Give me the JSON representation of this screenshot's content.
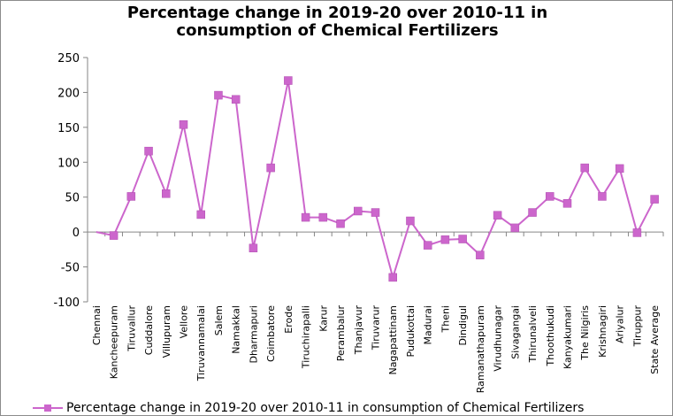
{
  "chart_data": {
    "type": "line",
    "title": "Percentage change in 2019-20 over 2010-11 in consumption of Chemical Fertilizers",
    "title_lines": [
      "Percentage change in 2019-20 over 2010-11 in",
      "consumption of Chemical Fertilizers"
    ],
    "xlabel": "",
    "ylabel": "",
    "ylim": [
      -100,
      250
    ],
    "yticks": [
      -100,
      -50,
      0,
      50,
      100,
      150,
      200,
      250
    ],
    "grid": false,
    "legend_position": "bottom",
    "color": "#cc66cc",
    "categories": [
      "Chennai",
      "Kancheepuram",
      "Tiruvallur",
      "Cuddalore",
      "Villupuram",
      "Vellore",
      "Tiruvannamalai",
      "Salem",
      "Namakkal",
      "Dharmapuri",
      "Coimbatore",
      "Erode",
      "Tiruchirapalli",
      "Karur",
      "Perambalur",
      "Thanjavur",
      "Tiruvarur",
      "Nagapattinam",
      "Pudukottai",
      "Madurai",
      "Theni",
      "Dindigul",
      "Ramanathapuram",
      "Virudhunagar",
      "Sivagangai",
      "Thirunalveli",
      "Thoothukudi",
      "Kanyakumari",
      "The Nilgiris",
      "Krishnagiri",
      "Ariyalur",
      "Tiruppur",
      "State Average"
    ],
    "series": [
      {
        "name": "Percentage change in 2019-20 over 2010-11 in consumption of  Chemical Fertilizers",
        "values": [
          0,
          -5,
          51,
          116,
          55,
          154,
          25,
          196,
          190,
          -23,
          92,
          217,
          21,
          21,
          12,
          30,
          28,
          -65,
          16,
          -19,
          -11,
          -10,
          -33,
          24,
          6,
          28,
          51,
          41,
          92,
          51,
          91,
          -1,
          47
        ],
        "marker_start": 1
      }
    ]
  }
}
